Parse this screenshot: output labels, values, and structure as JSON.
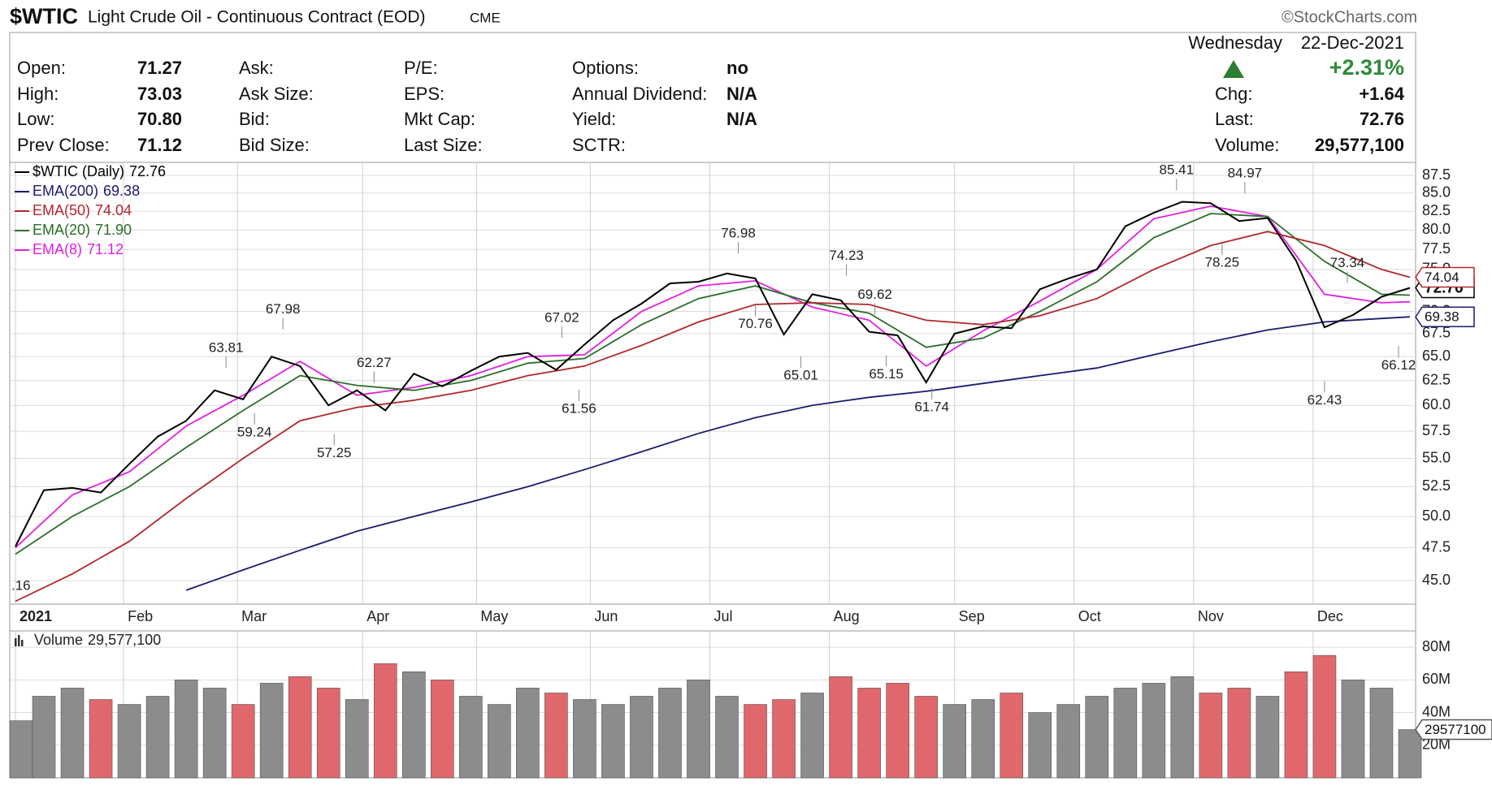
{
  "header": {
    "symbol": "$WTIC",
    "name": "Light Crude Oil - Continuous Contract (EOD)",
    "exchange": "CME",
    "source": "©StockCharts.com",
    "weekday": "Wednesday",
    "date": "22-Dec-2021"
  },
  "quote": {
    "columns": [
      [
        {
          "label": "Open:",
          "value": "71.27"
        },
        {
          "label": "High:",
          "value": "73.03"
        },
        {
          "label": "Low:",
          "value": "70.80"
        },
        {
          "label": "Prev Close:",
          "value": "71.12"
        }
      ],
      [
        {
          "label": "Ask:"
        },
        {
          "label": "Ask Size:"
        },
        {
          "label": "Bid:"
        },
        {
          "label": "Bid Size:"
        }
      ],
      [
        {
          "label": "P/E:"
        },
        {
          "label": "EPS:"
        },
        {
          "label": "Mkt Cap:"
        },
        {
          "label": "Last Size:"
        }
      ],
      [
        {
          "label": "Options:",
          "value": "no"
        },
        {
          "label": "Annual Dividend:",
          "value": "N/A"
        },
        {
          "label": "Yield:",
          "value": "N/A"
        },
        {
          "label": "SCTR:"
        }
      ]
    ],
    "change_pct": "+2.31%",
    "summary": [
      {
        "label": "Chg:",
        "value": "+1.64"
      },
      {
        "label": "Last:",
        "value": "72.76"
      },
      {
        "label": "Volume:",
        "value": "29,577,100"
      }
    ]
  },
  "chart_data": [
    {
      "type": "line",
      "log_scale": true,
      "grid": true,
      "x": [
        0,
        5,
        10,
        15,
        20,
        25,
        30,
        35,
        40,
        45,
        50,
        55,
        60,
        65,
        70,
        75,
        80,
        85,
        90,
        95,
        100,
        105,
        110,
        115,
        120,
        125,
        130,
        135,
        140,
        145,
        150,
        155,
        160,
        165,
        170,
        175,
        180,
        185,
        190,
        195,
        200,
        205,
        210,
        215,
        220,
        225,
        230,
        235,
        240,
        245
      ],
      "xlim": [
        -1,
        246
      ],
      "xticks": [
        {
          "value": 0,
          "label": "2021"
        },
        {
          "value": 19,
          "label": "Feb"
        },
        {
          "value": 39,
          "label": "Mar"
        },
        {
          "value": 61,
          "label": "Apr"
        },
        {
          "value": 81,
          "label": "May"
        },
        {
          "value": 101,
          "label": "Jun"
        },
        {
          "value": 122,
          "label": "Jul"
        },
        {
          "value": 143,
          "label": "Aug"
        },
        {
          "value": 165,
          "label": "Sep"
        },
        {
          "value": 186,
          "label": "Oct"
        },
        {
          "value": 207,
          "label": "Nov"
        },
        {
          "value": 228,
          "label": "Dec"
        }
      ],
      "ylim": [
        43.3,
        89.4
      ],
      "yticks": [
        {
          "value": 45,
          "label": "45.0"
        },
        47.5,
        {
          "value": 50,
          "label": "50.0"
        },
        52.5,
        {
          "value": 55,
          "label": "55.0"
        },
        57.5,
        {
          "value": 60,
          "label": "60.0"
        },
        62.5,
        {
          "value": 65,
          "label": "65.0"
        },
        67.5,
        {
          "value": 70,
          "label": "70.0"
        },
        72.5,
        {
          "value": 75,
          "label": "75.0"
        },
        77.5,
        {
          "value": 80,
          "label": "80.0"
        },
        82.5,
        {
          "value": 85,
          "label": "85.0"
        },
        87.5
      ],
      "series": [
        {
          "name": "$WTIC (Daily)",
          "color": "#000000",
          "last": 72.76,
          "axis_tag": true,
          "values": [
            47.6,
            52.2,
            52.4,
            52.0,
            54.5,
            57.0,
            58.5,
            61.5,
            60.6,
            65.0,
            64.0,
            60.0,
            61.5,
            59.5,
            63.2,
            61.9,
            63.5,
            65.0,
            65.4,
            63.6,
            66.3,
            69.0,
            70.9,
            73.3,
            73.5,
            74.5,
            73.9,
            67.4,
            72.0,
            71.3,
            67.7,
            67.3,
            62.3,
            67.5,
            68.3,
            68.1,
            72.6,
            73.9,
            75.0,
            80.5,
            82.3,
            83.8,
            83.6,
            81.2,
            81.6,
            76.1,
            68.2,
            69.6,
            71.7,
            72.76
          ]
        },
        {
          "name": "EMA(200)",
          "color": "#1c1c6e",
          "last": 69.38,
          "axis_tag": true,
          "x": [
            0,
            10,
            20,
            30,
            40,
            50,
            60,
            70,
            80,
            90,
            100,
            110,
            120,
            130,
            140,
            150,
            160,
            170,
            180,
            190,
            200,
            210,
            220,
            230,
            240,
            245
          ],
          "values": [
            null,
            null,
            null,
            44.3,
            45.8,
            47.3,
            48.8,
            50.0,
            51.2,
            52.5,
            54.0,
            55.6,
            57.3,
            58.8,
            60.0,
            60.8,
            61.4,
            62.2,
            63.0,
            63.8,
            65.2,
            66.6,
            67.9,
            68.8,
            69.2,
            69.38
          ]
        },
        {
          "name": "EMA(50)",
          "color": "#b0282d",
          "last": 74.04,
          "axis_tag": true,
          "x": [
            0,
            10,
            20,
            30,
            40,
            50,
            60,
            70,
            80,
            90,
            100,
            110,
            120,
            130,
            140,
            150,
            160,
            170,
            180,
            190,
            200,
            210,
            220,
            230,
            240,
            245
          ],
          "values": [
            43.5,
            45.5,
            48.0,
            51.5,
            55.0,
            58.5,
            59.8,
            60.5,
            61.5,
            63.0,
            64.0,
            66.2,
            68.8,
            70.8,
            71.0,
            70.8,
            69.0,
            68.5,
            69.5,
            71.5,
            75.0,
            78.0,
            79.8,
            78.0,
            75.0,
            74.04
          ]
        },
        {
          "name": "EMA(20)",
          "color": "#2a6e2a",
          "last": 71.9,
          "last_label": "71.90",
          "x": [
            0,
            10,
            20,
            30,
            40,
            50,
            60,
            70,
            80,
            90,
            100,
            110,
            120,
            130,
            140,
            150,
            160,
            170,
            180,
            190,
            200,
            210,
            220,
            230,
            240,
            245
          ],
          "values": [
            47.0,
            50.0,
            52.5,
            56.0,
            59.5,
            63.0,
            62.0,
            61.5,
            62.5,
            64.3,
            64.8,
            68.5,
            71.5,
            73.0,
            71.0,
            69.8,
            66.0,
            67.0,
            70.0,
            73.5,
            79.0,
            82.2,
            81.8,
            76.0,
            72.0,
            71.9
          ]
        },
        {
          "name": "EMA(8)",
          "color": "#e020e0",
          "last": 71.12,
          "x": [
            0,
            10,
            20,
            30,
            40,
            50,
            60,
            70,
            80,
            90,
            100,
            110,
            120,
            130,
            140,
            150,
            160,
            170,
            180,
            190,
            200,
            210,
            220,
            230,
            240,
            245
          ],
          "values": [
            47.5,
            51.8,
            53.8,
            58.0,
            61.0,
            64.5,
            61.0,
            61.8,
            63.0,
            65.0,
            65.2,
            70.0,
            73.0,
            73.6,
            70.5,
            69.0,
            64.0,
            67.8,
            71.2,
            75.0,
            81.5,
            83.2,
            81.8,
            72.0,
            71.0,
            71.12
          ]
        }
      ],
      "annotations": [
        {
          "x": 37,
          "value": 63.81,
          "position": "above"
        },
        {
          "x": 47,
          "value": 67.98,
          "position": "above"
        },
        {
          "x": 42,
          "value": 59.24,
          "position": "below"
        },
        {
          "x": 56,
          "value": 57.25,
          "position": "below"
        },
        {
          "x": 63,
          "value": 62.27,
          "position": "above"
        },
        {
          "x": 96,
          "value": 67.02,
          "position": "above"
        },
        {
          "x": 99,
          "value": 61.56,
          "position": "below"
        },
        {
          "x": 127,
          "value": 76.98,
          "position": "above"
        },
        {
          "x": 130,
          "value": 70.76,
          "position": "below"
        },
        {
          "x": 138,
          "value": 65.01,
          "position": "below"
        },
        {
          "x": 146,
          "value": 74.23,
          "position": "above"
        },
        {
          "x": 151,
          "value": 69.62,
          "position": "above"
        },
        {
          "x": 153,
          "value": 65.15,
          "position": "below"
        },
        {
          "x": 161,
          "value": 61.74,
          "position": "below"
        },
        {
          "x": 204,
          "value": 85.41,
          "position": "above"
        },
        {
          "x": 216,
          "value": 84.97,
          "position": "above"
        },
        {
          "x": 212,
          "value": 78.25,
          "position": "below"
        },
        {
          "x": 230,
          "value": 62.43,
          "position": "below"
        },
        {
          "x": 234,
          "value": 73.34,
          "position": "above"
        },
        {
          "x": 243,
          "value": 66.12,
          "position": "below"
        },
        {
          "x": 0,
          "label": ".16",
          "position": "below"
        }
      ]
    },
    {
      "type": "bar",
      "grid": true,
      "name": "Volume",
      "last": 29577100,
      "last_label": "29,577,100",
      "up_color": "#8c8c8c",
      "down_color": "#e0686c",
      "x": [
        0,
        5,
        10,
        15,
        20,
        25,
        30,
        35,
        40,
        45,
        50,
        55,
        60,
        65,
        70,
        75,
        80,
        85,
        90,
        95,
        100,
        105,
        110,
        115,
        120,
        125,
        130,
        135,
        140,
        145,
        150,
        155,
        160,
        165,
        170,
        175,
        180,
        185,
        190,
        195,
        200,
        205,
        210,
        215,
        220,
        225,
        230,
        235,
        240,
        245
      ],
      "values": [
        35000000,
        50000000,
        55000000,
        48000000,
        45000000,
        50000000,
        60000000,
        55000000,
        45000000,
        58000000,
        62000000,
        55000000,
        48000000,
        70000000,
        65000000,
        60000000,
        50000000,
        45000000,
        55000000,
        52000000,
        48000000,
        45000000,
        50000000,
        55000000,
        60000000,
        50000000,
        45000000,
        48000000,
        52000000,
        62000000,
        55000000,
        58000000,
        50000000,
        45000000,
        48000000,
        52000000,
        40000000,
        45000000,
        50000000,
        55000000,
        58000000,
        62000000,
        52000000,
        55000000,
        50000000,
        65000000,
        75000000,
        60000000,
        55000000,
        29577100
      ],
      "ylim": [
        0,
        90000000
      ],
      "yticks": [
        {
          "value": 20000000,
          "label": "20M"
        },
        {
          "value": 40000000,
          "label": "40M"
        },
        {
          "value": 60000000,
          "label": "60M"
        },
        {
          "value": 80000000,
          "label": "80M"
        }
      ]
    }
  ]
}
